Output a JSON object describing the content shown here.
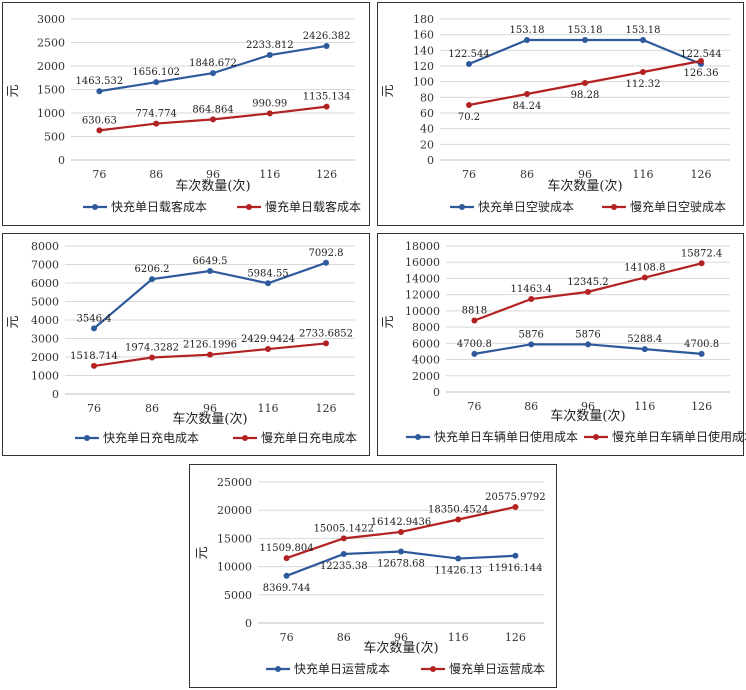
{
  "chart_data": [
    {
      "type": "line",
      "title": "",
      "xlabel": "车次数量(次)",
      "ylabel": "元",
      "categories": [
        "76",
        "86",
        "96",
        "116",
        "126"
      ],
      "ylim": [
        0,
        3000
      ],
      "yticks": [
        "0",
        "500",
        "1000",
        "1500",
        "2000",
        "2500",
        "3000"
      ],
      "series": [
        {
          "name": "快充单日载客成本",
          "color": "#2E5A9B",
          "values": [
            1463.532,
            1656.102,
            1848.672,
            2233.812,
            2426.382
          ],
          "labels": [
            "1463.532",
            "1656.102",
            "1848.672",
            "2233.812",
            "2426.382"
          ],
          "label_pos": "above"
        },
        {
          "name": "慢充单日载客成本",
          "color": "#B22222",
          "values": [
            630.63,
            774.774,
            864.864,
            990.99,
            1135.134
          ],
          "labels": [
            "630.63",
            "774.774",
            "864.864",
            "990.99",
            "1135.134"
          ],
          "label_pos": "above"
        }
      ]
    },
    {
      "type": "line",
      "title": "",
      "xlabel": "车次数量(次)",
      "ylabel": "元",
      "categories": [
        "76",
        "86",
        "96",
        "116",
        "126"
      ],
      "ylim": [
        0,
        180
      ],
      "yticks": [
        "0",
        "20",
        "40",
        "60",
        "80",
        "100",
        "120",
        "140",
        "160",
        "180"
      ],
      "series": [
        {
          "name": "快充单日空驶成本",
          "color": "#2E5A9B",
          "values": [
            122.544,
            153.18,
            153.18,
            153.18,
            122.544
          ],
          "labels": [
            "122.544",
            "153.18",
            "153.18",
            "153.18",
            "122.544"
          ],
          "label_pos": "above"
        },
        {
          "name": "慢充单日空驶成本",
          "color": "#B22222",
          "values": [
            70.2,
            84.24,
            98.28,
            112.32,
            126.36
          ],
          "labels": [
            "70.2",
            "84.24",
            "98.28",
            "112.32",
            "126.36"
          ],
          "label_pos": "below"
        }
      ]
    },
    {
      "type": "line",
      "title": "",
      "xlabel": "车次数量(次)",
      "ylabel": "元",
      "categories": [
        "76",
        "86",
        "96",
        "116",
        "126"
      ],
      "ylim": [
        0,
        8000
      ],
      "yticks": [
        "0",
        "1000",
        "2000",
        "3000",
        "4000",
        "5000",
        "6000",
        "7000",
        "8000"
      ],
      "series": [
        {
          "name": "快充单日充电成本",
          "color": "#2E5A9B",
          "values": [
            3546.4,
            6206.2,
            6649.5,
            5984.55,
            7092.8
          ],
          "labels": [
            "3546.4",
            "6206.2",
            "6649.5",
            "5984.55",
            "7092.8"
          ],
          "label_pos": "above"
        },
        {
          "name": "慢充单日充电成本",
          "color": "#B22222",
          "values": [
            1518.714,
            1974.3282,
            2126.1996,
            2429.9424,
            2733.6852
          ],
          "labels": [
            "1518.714",
            "1974.3282",
            "2126.1996",
            "2429.9424",
            "2733.6852"
          ],
          "label_pos": "above"
        }
      ]
    },
    {
      "type": "line",
      "title": "",
      "xlabel": "车次数量(次)",
      "ylabel": "元",
      "categories": [
        "76",
        "86",
        "96",
        "116",
        "126"
      ],
      "ylim": [
        0,
        18000
      ],
      "yticks": [
        "0",
        "2000",
        "4000",
        "6000",
        "8000",
        "10000",
        "12000",
        "14000",
        "16000",
        "18000"
      ],
      "series": [
        {
          "name": "快充单日车辆单日使用成本",
          "color": "#2E5A9B",
          "values": [
            4700.8,
            5876,
            5876,
            5288.4,
            4700.8
          ],
          "labels": [
            "4700.8",
            "5876",
            "5876",
            "5288.4",
            "4700.8"
          ],
          "label_pos": "above"
        },
        {
          "name": "慢充单日车辆单日使用成本",
          "color": "#B22222",
          "values": [
            8818,
            11463.4,
            12345.2,
            14108.8,
            15872.4
          ],
          "labels": [
            "8818",
            "11463.4",
            "12345.2",
            "14108.8",
            "15872.4"
          ],
          "label_pos": "above"
        }
      ]
    },
    {
      "type": "line",
      "title": "",
      "xlabel": "车次数量(次)",
      "ylabel": "元",
      "categories": [
        "76",
        "86",
        "96",
        "116",
        "126"
      ],
      "ylim": [
        0,
        25000
      ],
      "yticks": [
        "0",
        "5000",
        "10000",
        "15000",
        "20000",
        "25000"
      ],
      "series": [
        {
          "name": "快充单日运营成本",
          "color": "#2E5A9B",
          "values": [
            8369.744,
            12235.38,
            12678.68,
            11426.13,
            11916.144
          ],
          "labels": [
            "8369.744",
            "12235.38",
            "12678.68",
            "11426.13",
            "11916.144"
          ],
          "label_pos": "below"
        },
        {
          "name": "慢充单日运营成本",
          "color": "#B22222",
          "values": [
            11509.804,
            15005.1422,
            16142.9436,
            18350.4524,
            20575.9792
          ],
          "labels": [
            "11509.804",
            "15005.1422",
            "16142.9436",
            "18350.4524",
            "20575.9792"
          ],
          "label_pos": "above"
        }
      ]
    }
  ]
}
